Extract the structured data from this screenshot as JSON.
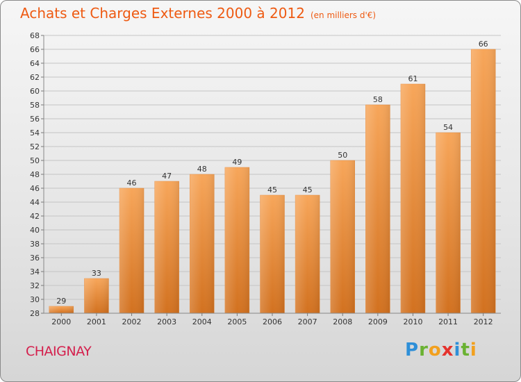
{
  "title": {
    "main": "Achats et Charges Externes 2000 à 2012",
    "sub": "(en milliers d'€)"
  },
  "location": "CHAIGNAY",
  "logo": {
    "text": "Proxiti",
    "letters": [
      {
        "ch": "P",
        "color": "#2e8fd8"
      },
      {
        "ch": "r",
        "color": "#6ab232"
      },
      {
        "ch": "o",
        "color": "#f2a01e"
      },
      {
        "ch": "x",
        "color": "#e5322d"
      },
      {
        "ch": "i",
        "color": "#2e8fd8"
      },
      {
        "ch": "t",
        "color": "#6ab232"
      },
      {
        "ch": "i",
        "color": "#f2a01e"
      }
    ]
  },
  "colors": {
    "title": "#ee5a12",
    "bar_light": "#f7a65a",
    "bar_dark": "#d2711f",
    "location": "#d41f4c"
  },
  "chart_data": {
    "type": "bar",
    "title": "Achats et Charges Externes 2000 à 2012",
    "subtitle": "(en milliers d'€)",
    "categories": [
      "2000",
      "2001",
      "2002",
      "2003",
      "2004",
      "2005",
      "2006",
      "2007",
      "2008",
      "2009",
      "2010",
      "2011",
      "2012"
    ],
    "values": [
      29,
      33,
      46,
      47,
      48,
      49,
      45,
      45,
      50,
      58,
      61,
      54,
      66
    ],
    "ylim": [
      28,
      68
    ],
    "yticks": [
      28,
      30,
      32,
      34,
      36,
      38,
      40,
      42,
      44,
      46,
      48,
      50,
      52,
      54,
      56,
      58,
      60,
      62,
      64,
      66,
      68
    ],
    "grid": true,
    "legend": "none"
  }
}
